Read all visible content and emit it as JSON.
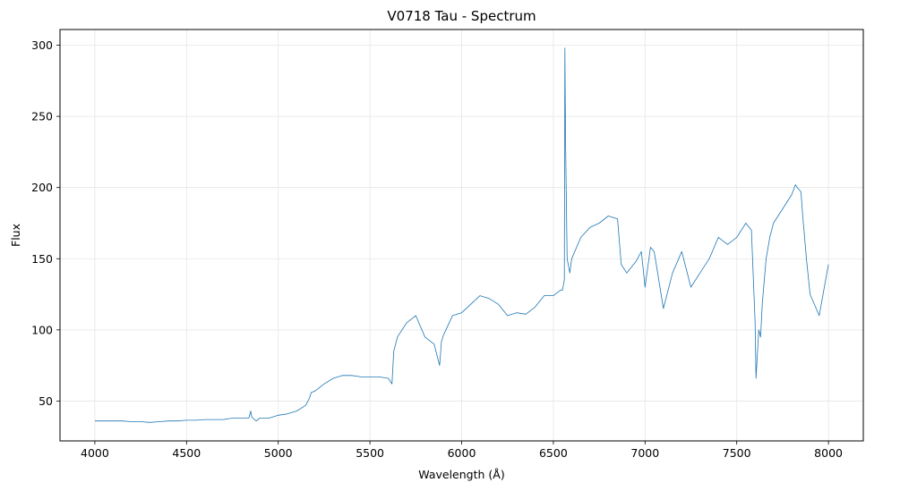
{
  "chart_data": {
    "type": "line",
    "title": "V0718 Tau - Spectrum",
    "xlabel": "Wavelength (Å)",
    "ylabel": "Flux",
    "xlim": [
      3810,
      8190
    ],
    "ylim": [
      22,
      311
    ],
    "xticks": [
      4000,
      4500,
      5000,
      5500,
      6000,
      6500,
      7000,
      7500,
      8000
    ],
    "yticks": [
      50,
      100,
      150,
      200,
      250,
      300
    ],
    "grid": true,
    "line_color": "#1f77b4",
    "series": [
      {
        "x": [
          4000,
          4050,
          4100,
          4150,
          4200,
          4250,
          4300,
          4350,
          4400,
          4450,
          4500,
          4550,
          4600,
          4650,
          4700,
          4750,
          4800,
          4840,
          4850,
          4855,
          4862,
          4870,
          4880,
          4900,
          4950,
          5000,
          5050,
          5100,
          5150,
          5170,
          5180,
          5200,
          5250,
          5300,
          5350,
          5400,
          5450,
          5500,
          5550,
          5600,
          5620,
          5630,
          5650,
          5700,
          5750,
          5800,
          5850,
          5880,
          5890,
          5900,
          5950,
          6000,
          6050,
          6100,
          6150,
          6200,
          6250,
          6300,
          6350,
          6400,
          6450,
          6500,
          6540,
          6550,
          6560,
          6563,
          6567,
          6575,
          6590,
          6600,
          6650,
          6700,
          6750,
          6800,
          6850,
          6870,
          6900,
          6950,
          6980,
          7000,
          7030,
          7050,
          7100,
          7150,
          7200,
          7250,
          7300,
          7350,
          7400,
          7450,
          7500,
          7550,
          7580,
          7600,
          7605,
          7620,
          7630,
          7640,
          7660,
          7680,
          7700,
          7750,
          7800,
          7820,
          7830,
          7850,
          7860,
          7880,
          7900,
          7950,
          8000
        ],
        "y": [
          36,
          36,
          36,
          36,
          35.5,
          35.5,
          35,
          35.5,
          36,
          36,
          36.5,
          36.5,
          37,
          37,
          37,
          38,
          38,
          38,
          43,
          39,
          38,
          37,
          36,
          38,
          38,
          40,
          41,
          43,
          47,
          52,
          56,
          57,
          62,
          66,
          68,
          68,
          67,
          67,
          67,
          66,
          62,
          85,
          95,
          105,
          110,
          95,
          90,
          75,
          92,
          96,
          110,
          112,
          118,
          124,
          122,
          118,
          110,
          112,
          111,
          116,
          124,
          124,
          128,
          128,
          135,
          298,
          230,
          150,
          140,
          150,
          165,
          172,
          175,
          180,
          178,
          146,
          140,
          148,
          155,
          130,
          158,
          155,
          115,
          140,
          155,
          130,
          140,
          150,
          165,
          160,
          165,
          175,
          170,
          105,
          66,
          100,
          95,
          120,
          150,
          165,
          175,
          185,
          195,
          202,
          200,
          197,
          180,
          150,
          125,
          110,
          146
        ]
      }
    ]
  }
}
